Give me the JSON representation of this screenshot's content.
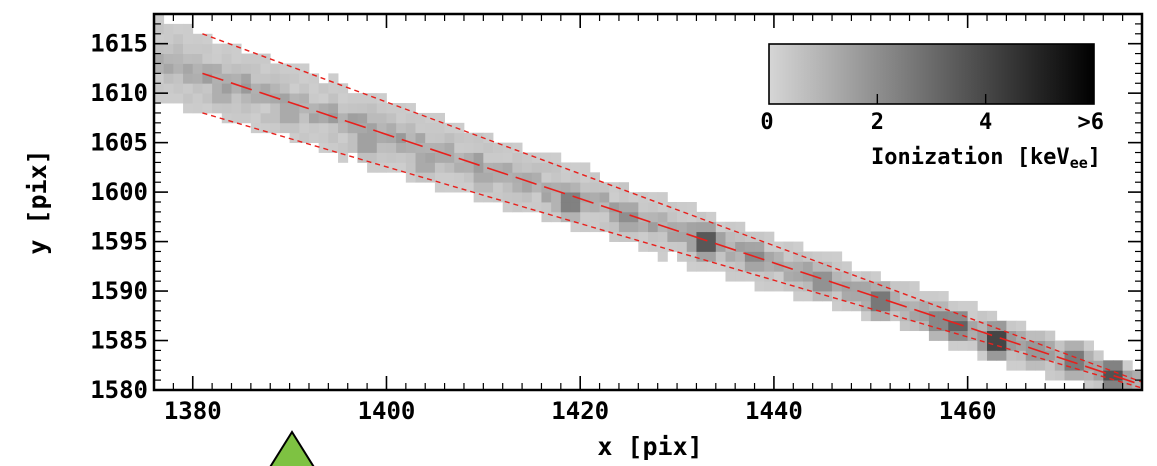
{
  "chart_data": {
    "type": "heatmap",
    "title": "",
    "xlabel": "x [pix]",
    "ylabel": "y [pix]",
    "xlim": [
      1376,
      1478
    ],
    "ylim": [
      1580,
      1618
    ],
    "x_ticks": [
      1380,
      1400,
      1420,
      1440,
      1460
    ],
    "y_ticks": [
      1580,
      1585,
      1590,
      1595,
      1600,
      1605,
      1610,
      1615
    ],
    "colorbar": {
      "title_main": "Ionization [keV",
      "title_sub": "ee",
      "title_end": "]",
      "range": [
        0,
        6
      ],
      "tick_labels": [
        {
          "value": 0,
          "label": "0"
        },
        {
          "value": 2,
          "label": "2"
        },
        {
          "value": 4,
          "label": "4"
        },
        {
          "value": 6,
          "label": ">6"
        }
      ],
      "colors": {
        "low": "#d6d6d6",
        "high": "#000000"
      }
    },
    "track": {
      "start": [
        1381,
        1612
      ],
      "end": [
        1478,
        1580.5
      ],
      "band_halfwidth": 4,
      "color": "#e8201c",
      "style": "dashed"
    },
    "hotspots": [
      {
        "x": 1383,
        "y": 1610,
        "value": 1.6
      },
      {
        "x": 1390,
        "y": 1608,
        "value": 1.8
      },
      {
        "x": 1398,
        "y": 1605,
        "value": 2.2
      },
      {
        "x": 1404,
        "y": 1603,
        "value": 1.8
      },
      {
        "x": 1410,
        "y": 1601.5,
        "value": 1.6
      },
      {
        "x": 1419,
        "y": 1599,
        "value": 3.5
      },
      {
        "x": 1425,
        "y": 1597.5,
        "value": 2.6
      },
      {
        "x": 1433,
        "y": 1595,
        "value": 5.2
      },
      {
        "x": 1438,
        "y": 1593.5,
        "value": 2.8
      },
      {
        "x": 1445,
        "y": 1591,
        "value": 2.8
      },
      {
        "x": 1451,
        "y": 1589,
        "value": 3.9
      },
      {
        "x": 1457,
        "y": 1587,
        "value": 3.2
      },
      {
        "x": 1459,
        "y": 1586.5,
        "value": 4.2
      },
      {
        "x": 1463,
        "y": 1585,
        "value": 6.0
      },
      {
        "x": 1467,
        "y": 1584,
        "value": 2.5
      },
      {
        "x": 1471,
        "y": 1583,
        "value": 3.8
      },
      {
        "x": 1475,
        "y": 1581.5,
        "value": 4.8
      }
    ],
    "grid": false,
    "legend": "top-right"
  }
}
